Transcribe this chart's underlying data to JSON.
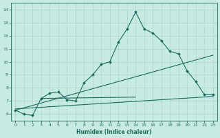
{
  "xlabel": "Humidex (Indice chaleur)",
  "ylabel": "",
  "bg_color": "#c8eae4",
  "grid_color": "#b0d8d0",
  "line_color": "#1a6b5a",
  "xlim": [
    -0.5,
    23.5
  ],
  "ylim": [
    5.5,
    14.5
  ],
  "yticks": [
    6,
    7,
    8,
    9,
    10,
    11,
    12,
    13,
    14
  ],
  "xticks": [
    0,
    1,
    2,
    3,
    4,
    5,
    6,
    7,
    8,
    9,
    10,
    11,
    12,
    13,
    14,
    15,
    16,
    17,
    18,
    19,
    20,
    21,
    22,
    23
  ],
  "main_x": [
    0,
    1,
    2,
    3,
    4,
    5,
    6,
    7,
    8,
    9,
    10,
    11,
    12,
    13,
    14,
    15,
    16,
    17,
    18,
    19,
    20,
    21,
    22,
    23
  ],
  "main_y": [
    6.3,
    6.0,
    5.9,
    7.2,
    7.6,
    7.7,
    7.1,
    7.0,
    8.4,
    9.0,
    9.8,
    10.0,
    11.5,
    12.5,
    13.8,
    12.5,
    12.2,
    11.6,
    10.8,
    10.6,
    9.3,
    8.5,
    7.5,
    7.5
  ],
  "line1_x": [
    0,
    23
  ],
  "line1_y": [
    6.3,
    10.5
  ],
  "line2_x": [
    0,
    23
  ],
  "line2_y": [
    6.4,
    7.35
  ],
  "line3_x": [
    3,
    14
  ],
  "line3_y": [
    7.2,
    7.3
  ]
}
